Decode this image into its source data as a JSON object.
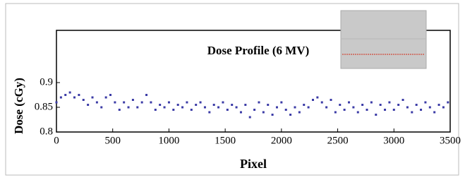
{
  "chart_data": {
    "type": "scatter",
    "title": "Dose Profile (6 MV)",
    "x_label": "Pixel",
    "y_label": "Dose (cGy)",
    "x": [
      0,
      40,
      80,
      120,
      160,
      200,
      240,
      280,
      320,
      360,
      400,
      440,
      480,
      520,
      560,
      600,
      640,
      680,
      720,
      760,
      800,
      840,
      880,
      920,
      960,
      1000,
      1040,
      1080,
      1120,
      1160,
      1200,
      1240,
      1280,
      1320,
      1360,
      1400,
      1440,
      1480,
      1520,
      1560,
      1600,
      1640,
      1680,
      1720,
      1760,
      1800,
      1840,
      1880,
      1920,
      1960,
      2000,
      2040,
      2080,
      2120,
      2160,
      2200,
      2240,
      2280,
      2320,
      2360,
      2400,
      2440,
      2480,
      2520,
      2560,
      2600,
      2640,
      2680,
      2720,
      2760,
      2800,
      2840,
      2880,
      2920,
      2960,
      3000,
      3040,
      3080,
      3120,
      3160,
      3200,
      3240,
      3280,
      3320,
      3360,
      3400,
      3440,
      3480
    ],
    "values": [
      0.86,
      0.87,
      0.875,
      0.88,
      0.87,
      0.875,
      0.865,
      0.855,
      0.87,
      0.86,
      0.85,
      0.87,
      0.875,
      0.86,
      0.845,
      0.86,
      0.85,
      0.865,
      0.85,
      0.86,
      0.875,
      0.86,
      0.845,
      0.855,
      0.85,
      0.86,
      0.845,
      0.855,
      0.85,
      0.86,
      0.845,
      0.855,
      0.86,
      0.85,
      0.84,
      0.855,
      0.85,
      0.86,
      0.845,
      0.855,
      0.85,
      0.84,
      0.855,
      0.83,
      0.845,
      0.86,
      0.84,
      0.855,
      0.835,
      0.85,
      0.86,
      0.845,
      0.835,
      0.85,
      0.84,
      0.855,
      0.85,
      0.865,
      0.87,
      0.86,
      0.85,
      0.865,
      0.84,
      0.855,
      0.845,
      0.86,
      0.85,
      0.84,
      0.855,
      0.845,
      0.86,
      0.835,
      0.855,
      0.845,
      0.86,
      0.845,
      0.855,
      0.865,
      0.85,
      0.84,
      0.855,
      0.845,
      0.86,
      0.85,
      0.84,
      0.855,
      0.85,
      0.86
    ],
    "color": "#3b3ba6",
    "xlim": [
      0,
      3500
    ],
    "xticks": [
      0,
      500,
      1000,
      1500,
      2000,
      2500,
      3000,
      3500
    ],
    "ylim": [
      0.8,
      1.0
    ],
    "yticks": [
      0.8,
      0.85,
      0.9
    ]
  }
}
